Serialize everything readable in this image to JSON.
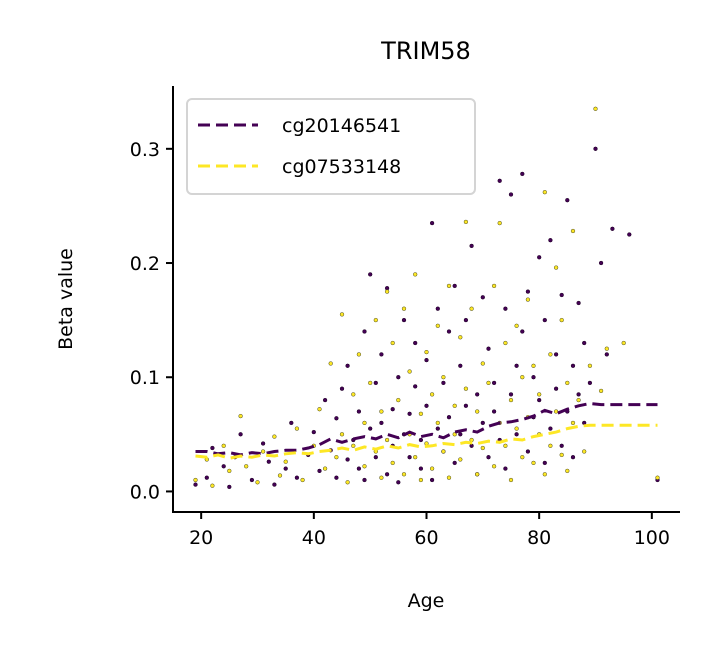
{
  "chart_data": {
    "type": "scatter",
    "title": "TRIM58",
    "xlabel": "Age",
    "ylabel": "Beta value",
    "xlim": [
      15,
      105
    ],
    "ylim": [
      -0.018,
      0.355
    ],
    "xticks": [
      20,
      40,
      60,
      80,
      100
    ],
    "yticks": [
      0.0,
      0.1,
      0.2,
      0.3
    ],
    "ytick_labels": [
      "0.0",
      "0.1",
      "0.2",
      "0.3"
    ],
    "legend_position": "top-left",
    "grid": false,
    "series": [
      {
        "name": "cg20146541",
        "color": "#440154",
        "trend": {
          "style": "dashed",
          "x": [
            19,
            21,
            23,
            25,
            27,
            29,
            31,
            33,
            35,
            37,
            39,
            41,
            43,
            45,
            47,
            49,
            51,
            53,
            55,
            57,
            59,
            61,
            63,
            65,
            67,
            69,
            71,
            73,
            75,
            77,
            79,
            81,
            83,
            85,
            87,
            89,
            91,
            93,
            95,
            97,
            99,
            101
          ],
          "y": [
            0.035,
            0.035,
            0.033,
            0.034,
            0.032,
            0.034,
            0.033,
            0.035,
            0.036,
            0.036,
            0.038,
            0.041,
            0.046,
            0.043,
            0.046,
            0.048,
            0.046,
            0.05,
            0.047,
            0.052,
            0.048,
            0.05,
            0.047,
            0.052,
            0.054,
            0.052,
            0.057,
            0.06,
            0.061,
            0.063,
            0.066,
            0.071,
            0.068,
            0.072,
            0.075,
            0.077,
            0.076,
            0.076,
            0.076,
            0.076,
            0.076,
            0.076
          ]
        },
        "points": [
          [
            19,
            0.006
          ],
          [
            21,
            0.012
          ],
          [
            22,
            0.038
          ],
          [
            24,
            0.022
          ],
          [
            25,
            0.004
          ],
          [
            26,
            0.03
          ],
          [
            27,
            0.05
          ],
          [
            29,
            0.01
          ],
          [
            31,
            0.042
          ],
          [
            32,
            0.026
          ],
          [
            33,
            0.006
          ],
          [
            35,
            0.02
          ],
          [
            36,
            0.06
          ],
          [
            37,
            0.012
          ],
          [
            39,
            0.032
          ],
          [
            40,
            0.052
          ],
          [
            41,
            0.018
          ],
          [
            42,
            0.08
          ],
          [
            43,
            0.036
          ],
          [
            44,
            0.064
          ],
          [
            44,
            0.012
          ],
          [
            45,
            0.09
          ],
          [
            46,
            0.028
          ],
          [
            46,
            0.11
          ],
          [
            47,
            0.045
          ],
          [
            48,
            0.02
          ],
          [
            48,
            0.07
          ],
          [
            49,
            0.14
          ],
          [
            49,
            0.01
          ],
          [
            50,
            0.055
          ],
          [
            50,
            0.19
          ],
          [
            51,
            0.03
          ],
          [
            51,
            0.095
          ],
          [
            52,
            0.06
          ],
          [
            52,
            0.12
          ],
          [
            53,
            0.178
          ],
          [
            53,
            0.015
          ],
          [
            54,
            0.04
          ],
          [
            54,
            0.072
          ],
          [
            55,
            0.1
          ],
          [
            55,
            0.008
          ],
          [
            56,
            0.15
          ],
          [
            56,
            0.05
          ],
          [
            57,
            0.03
          ],
          [
            57,
            0.068
          ],
          [
            58,
            0.13
          ],
          [
            58,
            0.092
          ],
          [
            59,
            0.02
          ],
          [
            59,
            0.045
          ],
          [
            60,
            0.115
          ],
          [
            60,
            0.075
          ],
          [
            61,
            0.235
          ],
          [
            61,
            0.01
          ],
          [
            62,
            0.16
          ],
          [
            62,
            0.055
          ],
          [
            63,
            0.095
          ],
          [
            63,
            0.035
          ],
          [
            64,
            0.14
          ],
          [
            64,
            0.065
          ],
          [
            65,
            0.18
          ],
          [
            65,
            0.025
          ],
          [
            66,
            0.11
          ],
          [
            66,
            0.05
          ],
          [
            67,
            0.15
          ],
          [
            67,
            0.075
          ],
          [
            68,
            0.215
          ],
          [
            68,
            0.04
          ],
          [
            69,
            0.085
          ],
          [
            69,
            0.015
          ],
          [
            70,
            0.17
          ],
          [
            70,
            0.06
          ],
          [
            71,
            0.125
          ],
          [
            71,
            0.03
          ],
          [
            72,
            0.095
          ],
          [
            72,
            0.07
          ],
          [
            73,
            0.272
          ],
          [
            73,
            0.045
          ],
          [
            74,
            0.16
          ],
          [
            74,
            0.02
          ],
          [
            75,
            0.26
          ],
          [
            75,
            0.085
          ],
          [
            76,
            0.11
          ],
          [
            76,
            0.05
          ],
          [
            77,
            0.278
          ],
          [
            77,
            0.14
          ],
          [
            78,
            0.175
          ],
          [
            78,
            0.035
          ],
          [
            79,
            0.1
          ],
          [
            79,
            0.065
          ],
          [
            80,
            0.205
          ],
          [
            80,
            0.08
          ],
          [
            81,
            0.15
          ],
          [
            81,
            0.025
          ],
          [
            82,
            0.22
          ],
          [
            82,
            0.055
          ],
          [
            83,
            0.12
          ],
          [
            83,
            0.09
          ],
          [
            84,
            0.172
          ],
          [
            84,
            0.04
          ],
          [
            85,
            0.255
          ],
          [
            85,
            0.07
          ],
          [
            86,
            0.11
          ],
          [
            86,
            0.03
          ],
          [
            87,
            0.165
          ],
          [
            87,
            0.085
          ],
          [
            88,
            0.06
          ],
          [
            88,
            0.13
          ],
          [
            89,
            0.095
          ],
          [
            90,
            0.3
          ],
          [
            91,
            0.2
          ],
          [
            92,
            0.12
          ],
          [
            93,
            0.23
          ],
          [
            96,
            0.225
          ],
          [
            101,
            0.01
          ]
        ]
      },
      {
        "name": "cg07533148",
        "color": "#fde725",
        "trend": {
          "style": "dashed",
          "x": [
            19,
            21,
            23,
            25,
            27,
            29,
            31,
            33,
            35,
            37,
            39,
            41,
            43,
            45,
            47,
            49,
            51,
            53,
            55,
            57,
            59,
            61,
            63,
            65,
            67,
            69,
            71,
            73,
            75,
            77,
            79,
            81,
            83,
            85,
            87,
            89,
            91,
            93,
            95,
            97,
            99,
            101
          ],
          "y": [
            0.031,
            0.03,
            0.032,
            0.029,
            0.031,
            0.03,
            0.032,
            0.031,
            0.033,
            0.034,
            0.033,
            0.035,
            0.036,
            0.038,
            0.036,
            0.039,
            0.037,
            0.04,
            0.038,
            0.041,
            0.039,
            0.04,
            0.042,
            0.041,
            0.043,
            0.042,
            0.044,
            0.043,
            0.046,
            0.045,
            0.048,
            0.05,
            0.052,
            0.055,
            0.057,
            0.058,
            0.058,
            0.058,
            0.058,
            0.058,
            0.058,
            0.058
          ]
        },
        "points": [
          [
            19,
            0.01
          ],
          [
            21,
            0.028
          ],
          [
            22,
            0.005
          ],
          [
            24,
            0.04
          ],
          [
            25,
            0.018
          ],
          [
            27,
            0.066
          ],
          [
            28,
            0.022
          ],
          [
            30,
            0.008
          ],
          [
            31,
            0.035
          ],
          [
            33,
            0.048
          ],
          [
            34,
            0.014
          ],
          [
            35,
            0.026
          ],
          [
            37,
            0.055
          ],
          [
            38,
            0.01
          ],
          [
            40,
            0.04
          ],
          [
            41,
            0.072
          ],
          [
            42,
            0.02
          ],
          [
            43,
            0.112
          ],
          [
            44,
            0.03
          ],
          [
            45,
            0.05
          ],
          [
            45,
            0.155
          ],
          [
            46,
            0.008
          ],
          [
            47,
            0.085
          ],
          [
            47,
            0.04
          ],
          [
            48,
            0.12
          ],
          [
            49,
            0.06
          ],
          [
            49,
            0.022
          ],
          [
            50,
            0.095
          ],
          [
            51,
            0.035
          ],
          [
            51,
            0.15
          ],
          [
            52,
            0.07
          ],
          [
            52,
            0.012
          ],
          [
            53,
            0.175
          ],
          [
            53,
            0.045
          ],
          [
            54,
            0.13
          ],
          [
            54,
            0.025
          ],
          [
            55,
            0.08
          ],
          [
            56,
            0.16
          ],
          [
            56,
            0.015
          ],
          [
            57,
            0.105
          ],
          [
            57,
            0.05
          ],
          [
            58,
            0.03
          ],
          [
            58,
            0.19
          ],
          [
            59,
            0.068
          ],
          [
            59,
            0.01
          ],
          [
            60,
            0.122
          ],
          [
            60,
            0.042
          ],
          [
            61,
            0.085
          ],
          [
            61,
            0.02
          ],
          [
            62,
            0.145
          ],
          [
            62,
            0.06
          ],
          [
            63,
            0.035
          ],
          [
            63,
            0.1
          ],
          [
            64,
            0.18
          ],
          [
            64,
            0.012
          ],
          [
            65,
            0.075
          ],
          [
            65,
            0.05
          ],
          [
            66,
            0.135
          ],
          [
            66,
            0.028
          ],
          [
            67,
            0.09
          ],
          [
            67,
            0.236
          ],
          [
            68,
            0.045
          ],
          [
            68,
            0.16
          ],
          [
            69,
            0.015
          ],
          [
            69,
            0.07
          ],
          [
            70,
            0.112
          ],
          [
            70,
            0.038
          ],
          [
            71,
            0.095
          ],
          [
            72,
            0.18
          ],
          [
            72,
            0.022
          ],
          [
            73,
            0.06
          ],
          [
            73,
            0.235
          ],
          [
            74,
            0.13
          ],
          [
            74,
            0.04
          ],
          [
            75,
            0.08
          ],
          [
            75,
            0.01
          ],
          [
            76,
            0.145
          ],
          [
            76,
            0.055
          ],
          [
            77,
            0.1
          ],
          [
            77,
            0.03
          ],
          [
            78,
            0.168
          ],
          [
            78,
            0.065
          ],
          [
            79,
            0.025
          ],
          [
            79,
            0.11
          ],
          [
            80,
            0.05
          ],
          [
            80,
            0.085
          ],
          [
            81,
            0.262
          ],
          [
            81,
            0.015
          ],
          [
            82,
            0.12
          ],
          [
            82,
            0.04
          ],
          [
            83,
            0.196
          ],
          [
            83,
            0.07
          ],
          [
            84,
            0.032
          ],
          [
            84,
            0.15
          ],
          [
            85,
            0.095
          ],
          [
            85,
            0.018
          ],
          [
            86,
            0.228
          ],
          [
            86,
            0.06
          ],
          [
            87,
            0.08
          ],
          [
            88,
            0.035
          ],
          [
            89,
            0.11
          ],
          [
            90,
            0.335
          ],
          [
            91,
            0.088
          ],
          [
            92,
            0.125
          ],
          [
            95,
            0.13
          ],
          [
            101,
            0.012
          ]
        ]
      }
    ]
  }
}
